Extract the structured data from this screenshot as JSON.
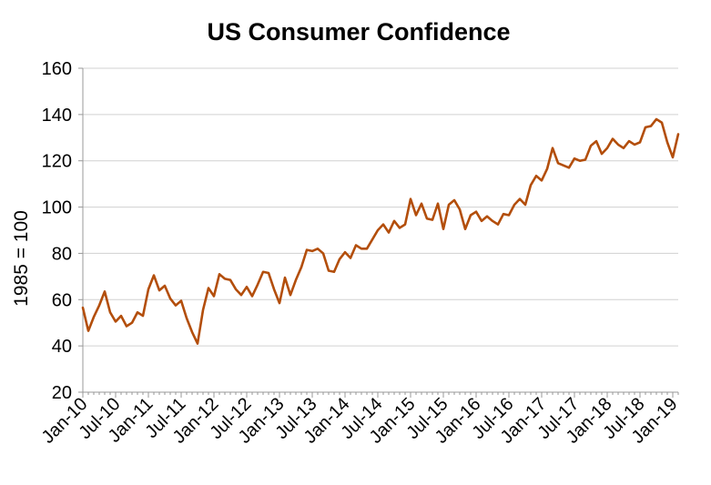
{
  "chart_data": {
    "type": "line",
    "title": "US Consumer Confidence",
    "xlabel": "",
    "ylabel": "1985 = 100",
    "ylim": [
      20,
      160
    ],
    "yticks": [
      20,
      40,
      60,
      80,
      100,
      120,
      140,
      160
    ],
    "grid": true,
    "x_tick_labels": [
      "Jan-10",
      "Jul-10",
      "Jan-11",
      "Jul-11",
      "Jan-12",
      "Jul-12",
      "Jan-13",
      "Jul-13",
      "Jan-14",
      "Jul-14",
      "Jan-15",
      "Jul-15",
      "Jan-16",
      "Jul-16",
      "Jan-17",
      "Jul-17",
      "Jan-18",
      "Jul-18",
      "Jan-19"
    ],
    "x_start": "Jan-10",
    "series": [
      {
        "name": "US Consumer Confidence",
        "color": "#b34e0b",
        "values": [
          56.5,
          46.5,
          52.5,
          57.5,
          63.5,
          54.5,
          50.5,
          53.0,
          48.5,
          50.0,
          54.5,
          53.0,
          64.5,
          70.5,
          64.0,
          66.0,
          60.5,
          57.5,
          59.5,
          52.0,
          46.0,
          41.0,
          55.5,
          65.0,
          61.5,
          71.0,
          69.0,
          68.5,
          64.5,
          62.0,
          65.5,
          61.5,
          66.5,
          72.0,
          71.5,
          64.5,
          58.5,
          69.5,
          62.0,
          68.5,
          74.0,
          81.5,
          81.0,
          82.0,
          80.0,
          72.5,
          72.0,
          77.5,
          80.5,
          78.0,
          83.5,
          82.0,
          82.0,
          86.0,
          90.0,
          92.5,
          89.0,
          94.0,
          91.0,
          92.5,
          103.5,
          96.5,
          101.5,
          95.0,
          94.5,
          101.5,
          90.5,
          101.0,
          103.0,
          99.0,
          90.5,
          96.5,
          98.0,
          94.0,
          96.0,
          94.0,
          92.5,
          97.0,
          96.5,
          101.0,
          103.5,
          101.0,
          109.5,
          113.5,
          111.5,
          116.5,
          125.5,
          119.0,
          118.0,
          117.0,
          121.0,
          120.0,
          120.5,
          126.5,
          128.5,
          123.0,
          125.5,
          129.5,
          127.0,
          125.5,
          128.5,
          127.0,
          128.0,
          134.5,
          135.0,
          138.0,
          136.5,
          128.0,
          121.5,
          131.5
        ]
      }
    ]
  }
}
